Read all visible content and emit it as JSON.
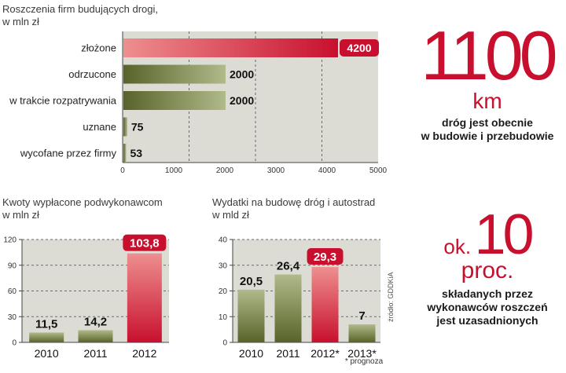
{
  "chart_data": [
    {
      "type": "bar",
      "orientation": "horizontal",
      "title": "Roszczenia firm budujących drogi,",
      "subtitle": "w mln zł",
      "categories": [
        "złożone",
        "odrzucone",
        "w trakcie rozpatrywania",
        "uznane",
        "wycofane przez firmy"
      ],
      "values": [
        4200,
        2000,
        2000,
        75,
        53
      ],
      "value_labels": [
        "4200",
        "2000",
        "2000",
        "75",
        "53"
      ],
      "highlight_index": 0,
      "xlim": [
        0,
        5000
      ],
      "xticks": [
        "0",
        "1000",
        "2000",
        "3000",
        "4000",
        "5000"
      ],
      "grid": true
    },
    {
      "type": "bar",
      "title": "Kwoty wypłacone podwykonawcom",
      "subtitle": "w mln zł",
      "categories": [
        "2010",
        "2011",
        "2012"
      ],
      "values": [
        11.5,
        14.2,
        103.8
      ],
      "value_labels": [
        "11,5",
        "14,2",
        "103,8"
      ],
      "highlight_index": 2,
      "ylim": [
        0,
        120
      ],
      "yticks": [
        "0",
        "30",
        "60",
        "90",
        "120"
      ],
      "grid": true
    },
    {
      "type": "bar",
      "title": "Wydatki na budowę dróg i autostrad",
      "subtitle": "w mld zł",
      "categories": [
        "2010",
        "2011",
        "2012*",
        "2013*"
      ],
      "values": [
        20.5,
        26.4,
        29.3,
        7
      ],
      "value_labels": [
        "20,5",
        "26,4",
        "29,3",
        "7"
      ],
      "highlight_index": 2,
      "ylim": [
        0,
        40
      ],
      "yticks": [
        "0",
        "10",
        "20",
        "30",
        "40"
      ],
      "grid": true,
      "footnote": "* prognoza",
      "source": "źródło: GDDKiA"
    }
  ],
  "stats": {
    "km": {
      "number": "1100",
      "unit": "km",
      "desc_line1": "dróg jest obecnie",
      "desc_line2": "w budowie i przebudowie"
    },
    "proc": {
      "prefix": "ok.",
      "number": "10",
      "unit": "proc.",
      "desc_line1": "składanych przez",
      "desc_line2": "wykonawców roszczeń",
      "desc_line3": "jest uzasadnionych"
    }
  },
  "colors": {
    "green_dark": "#58632a",
    "green_light": "#b0ba8a",
    "red_dark": "#c8102e",
    "red_light": "#ee8f8f",
    "panel": "#dcdcd5"
  }
}
